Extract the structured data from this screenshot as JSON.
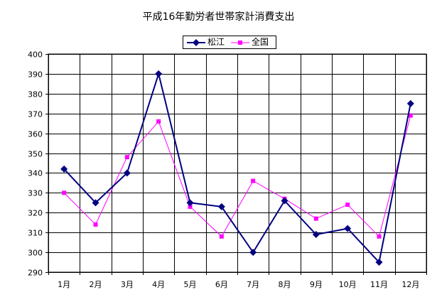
{
  "title": "平成16年勤労者世帯家計消費支出",
  "chart_data": {
    "type": "line",
    "title": "平成16年勤労者世帯家計消費支出",
    "xlabel": "",
    "ylabel": "",
    "categories": [
      "1月",
      "2月",
      "3月",
      "4月",
      "5月",
      "6月",
      "7月",
      "8月",
      "9月",
      "10月",
      "11月",
      "12月"
    ],
    "ylim": [
      290,
      400
    ],
    "yticks": [
      290,
      300,
      310,
      320,
      330,
      340,
      350,
      360,
      370,
      380,
      390,
      400
    ],
    "grid": true,
    "legend_position": "top-center",
    "series": [
      {
        "name": "松江",
        "color": "#000080",
        "marker": "diamond",
        "values": [
          342,
          325,
          340,
          390,
          325,
          323,
          300,
          326,
          309,
          312,
          295,
          375
        ]
      },
      {
        "name": "全国",
        "color": "#ff00ff",
        "marker": "square",
        "values": [
          330,
          314,
          348,
          366,
          323,
          308,
          336,
          327,
          317,
          324,
          308,
          369
        ]
      }
    ]
  }
}
